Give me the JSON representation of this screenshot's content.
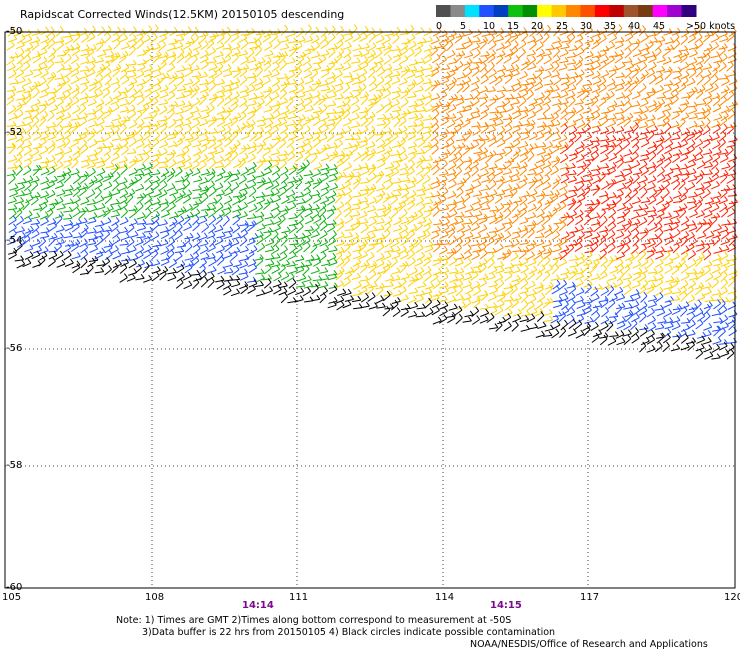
{
  "title": "Rapidscat Corrected Winds(12.5KM) 20150105 descending",
  "legend": {
    "colors": [
      "#505050",
      "#8a8a8a",
      "#00e0ff",
      "#2050ff",
      "#0040c0",
      "#10c010",
      "#009000",
      "#ffff00",
      "#ffc800",
      "#ff8800",
      "#ff5000",
      "#ff0000",
      "#c00000",
      "#a0522d",
      "#7a3a10",
      "#ff00ff",
      "#a000d0",
      "#300080"
    ],
    "ticks": [
      "0",
      "5",
      "10",
      "15",
      "20",
      "25",
      "30",
      "35",
      "40",
      "45",
      ">50 knots"
    ]
  },
  "axes": {
    "lat_labels": [
      "-50",
      "-52",
      "-54",
      "-56",
      "-58",
      "-60"
    ],
    "lon_labels": [
      "105",
      "108",
      "111",
      "114",
      "117",
      "120"
    ]
  },
  "times": [
    "14:14",
    "14:15"
  ],
  "notes": {
    "line1": "Note: 1) Times are GMT 2)Times along bottom correspond to measurement at -50S",
    "line2": "3)Data buffer is 22 hrs from 20150105 4) Black circles indicate possible contamination",
    "line3": "NOAA/NESDIS/Office of Research and Applications"
  },
  "wind_scale": {
    "speed_colors": [
      "#000000",
      "#2050ff",
      "#10b010",
      "#ffd000",
      "#ff8800",
      "#ff2000"
    ]
  }
}
